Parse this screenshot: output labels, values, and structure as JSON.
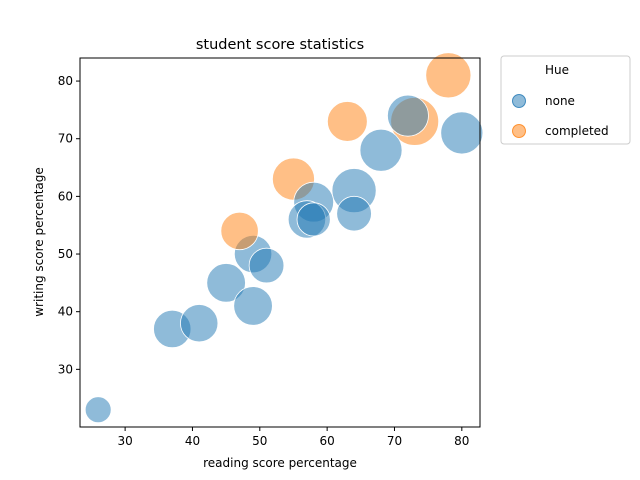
{
  "chart_data": {
    "type": "scatter",
    "title": "student score statistics",
    "xlabel": "reading score percentage",
    "ylabel": "writing score percentage",
    "xlim": [
      23.3,
      82.7
    ],
    "ylim": [
      20.0,
      84.0
    ],
    "xticks": [
      30,
      40,
      50,
      60,
      70,
      80
    ],
    "yticks": [
      30,
      40,
      50,
      60,
      70,
      80
    ],
    "grid": false,
    "legend": {
      "title": "Hue",
      "placement": "outside-right",
      "entries": [
        {
          "label": "none",
          "color": "#1f77b4"
        },
        {
          "label": "completed",
          "color": "#ff7f0e"
        }
      ]
    },
    "point_alpha": 0.5,
    "size_note": "point size encodes a third variable (no size legend shown)",
    "series": [
      {
        "name": "none",
        "color": "#1f77b4",
        "points": [
          {
            "x": 26,
            "y": 23,
            "size": 0.15
          },
          {
            "x": 37,
            "y": 37,
            "size": 0.5
          },
          {
            "x": 41,
            "y": 38,
            "size": 0.5
          },
          {
            "x": 45,
            "y": 45,
            "size": 0.55
          },
          {
            "x": 49,
            "y": 41,
            "size": 0.55
          },
          {
            "x": 49,
            "y": 50,
            "size": 0.5
          },
          {
            "x": 51,
            "y": 48,
            "size": 0.4
          },
          {
            "x": 57,
            "y": 56,
            "size": 0.5
          },
          {
            "x": 58,
            "y": 56,
            "size": 0.35
          },
          {
            "x": 58,
            "y": 59,
            "size": 0.6
          },
          {
            "x": 64,
            "y": 57,
            "size": 0.4
          },
          {
            "x": 64,
            "y": 61,
            "size": 0.8
          },
          {
            "x": 68,
            "y": 68,
            "size": 0.7
          },
          {
            "x": 72,
            "y": 74,
            "size": 0.65
          },
          {
            "x": 80,
            "y": 71,
            "size": 0.7
          }
        ]
      },
      {
        "name": "completed",
        "color": "#ff7f0e",
        "points": [
          {
            "x": 47,
            "y": 54,
            "size": 0.5
          },
          {
            "x": 55,
            "y": 63,
            "size": 0.7
          },
          {
            "x": 63,
            "y": 73,
            "size": 0.6
          },
          {
            "x": 73,
            "y": 73,
            "size": 1.0
          },
          {
            "x": 78,
            "y": 81,
            "size": 0.85
          }
        ]
      }
    ]
  }
}
